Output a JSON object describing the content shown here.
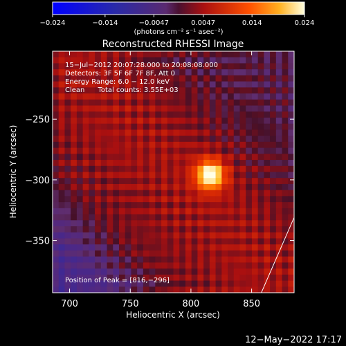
{
  "chart_data": {
    "type": "heatmap",
    "title": "Reconstructed RHESSI Image",
    "xlabel": "Heliocentric X (arcsec)",
    "ylabel": "Heliocentric Y (arcsec)",
    "xlim": [
      686,
      885
    ],
    "ylim": [
      -393,
      -194
    ],
    "xticks": [
      700,
      750,
      800,
      850
    ],
    "xtick_labels": [
      "700",
      "750",
      "800",
      "850"
    ],
    "yticks": [
      -250,
      -300,
      -350
    ],
    "ytick_labels": [
      "−250",
      "−300",
      "−350"
    ],
    "colorbar": {
      "range": [
        -0.024,
        0.024
      ],
      "ticks": [
        -0.024,
        -0.014,
        -0.0047,
        0.0047,
        0.014,
        0.024
      ],
      "tick_labels": [
        "−0.024",
        "−0.014",
        "−0.0047",
        "0.0047",
        "0.014",
        "0.024"
      ],
      "unit_label": "(photons cm⁻² s⁻¹ asec⁻²)"
    },
    "annotations": [
      "15−Jul−2012 20:07:28.000 to 20:08:08.000",
      "Detectors: 3F 5F 6F 7F 8F, Att 0",
      "Energy Range: 6.0 − 12.0 keV",
      "Clean      Total counts: 3.55E+03"
    ],
    "peak_label": "Position of Peak = [816,−296]",
    "peak": [
      816,
      -296
    ],
    "limb_line": [
      [
        858,
        -393
      ],
      [
        885,
        -331
      ]
    ],
    "grid": false
  },
  "footer": {
    "timestamp": "12−May−2022 17:17"
  }
}
